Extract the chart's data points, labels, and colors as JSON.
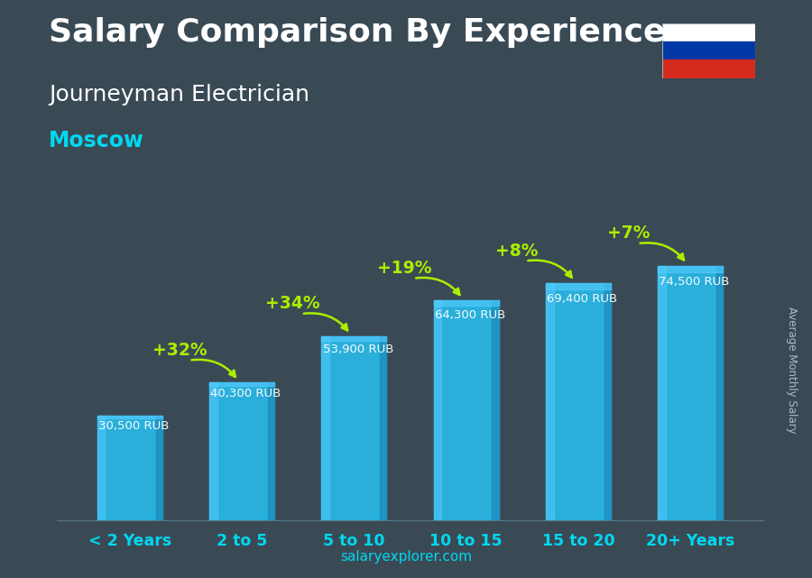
{
  "title": "Salary Comparison By Experience",
  "subtitle": "Journeyman Electrician",
  "city": "Moscow",
  "categories": [
    "< 2 Years",
    "2 to 5",
    "5 to 10",
    "10 to 15",
    "15 to 20",
    "20+ Years"
  ],
  "values": [
    30500,
    40300,
    53900,
    64300,
    69400,
    74500
  ],
  "value_labels": [
    "30,500 RUB",
    "40,300 RUB",
    "53,900 RUB",
    "64,300 RUB",
    "69,400 RUB",
    "74,500 RUB"
  ],
  "pct_labels": [
    "+32%",
    "+34%",
    "+19%",
    "+8%",
    "+7%"
  ],
  "bar_color_main": "#29b8e8",
  "bar_color_light": "#55ccff",
  "bar_color_dark": "#1a8ab8",
  "bar_color_side": "#1a9fd4",
  "bg_color": "#3a4a55",
  "text_color_white": "#ffffff",
  "text_color_cyan": "#00d8f0",
  "text_color_green": "#aaee00",
  "title_fontsize": 26,
  "subtitle_fontsize": 18,
  "city_fontsize": 17,
  "watermark": "salaryexplorer.com",
  "ylabel_text": "Average Monthly Salary",
  "ylim_max": 88000,
  "bar_width": 0.58
}
